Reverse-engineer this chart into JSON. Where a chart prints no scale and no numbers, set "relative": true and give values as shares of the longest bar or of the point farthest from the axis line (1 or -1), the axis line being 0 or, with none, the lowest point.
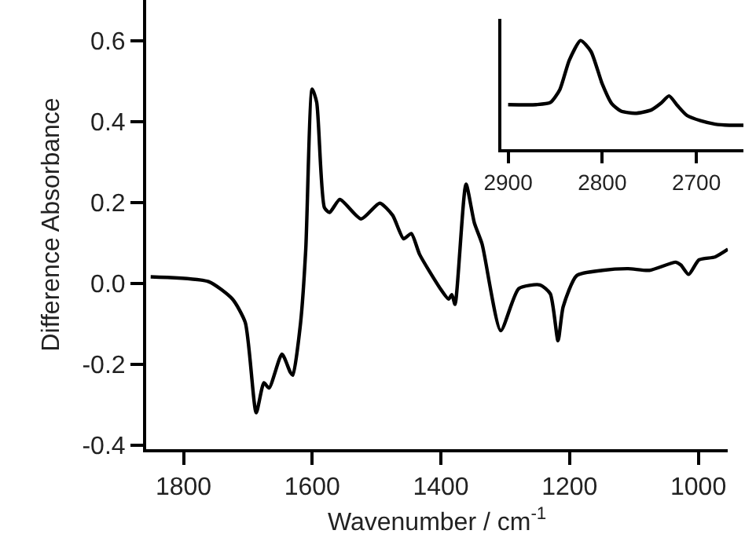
{
  "chart_data": [
    {
      "type": "line",
      "xlabel": "Wavenumber / cm$^{-1}$",
      "ylabel": "Difference Absorbance",
      "xlim": [
        1858,
        954
      ],
      "ylim": [
        -0.41,
        0.7
      ],
      "xticks": [
        1800,
        1600,
        1400,
        1200,
        1000
      ],
      "yticks": [
        {
          "value": 0.6,
          "label": "0.6"
        },
        {
          "value": 0.4,
          "label": "0.4"
        },
        {
          "value": 0.2,
          "label": "0.2"
        },
        {
          "value": 0.0,
          "label": "0.0"
        },
        {
          "value": -0.2,
          "label": "-0.2"
        },
        {
          "value": -0.4,
          "label": "-0.4"
        }
      ],
      "marker": "none",
      "line_style": "solid",
      "series": [
        {
          "color": "#000000",
          "x": [
            1851,
            1761,
            1724,
            1704,
            1687,
            1675,
            1667,
            1647,
            1634,
            1630,
            1618,
            1610,
            1600,
            1593,
            1581,
            1573,
            1557,
            1524,
            1495,
            1475,
            1458,
            1446,
            1433,
            1401,
            1388,
            1383,
            1378,
            1361,
            1348,
            1336,
            1307,
            1279,
            1246,
            1230,
            1218,
            1210,
            1189,
            1149,
            1109,
            1076,
            1035,
            1027,
            1015,
            999,
            974,
            954
          ],
          "values": [
            0.016,
            0.004,
            -0.039,
            -0.097,
            -0.32,
            -0.246,
            -0.259,
            -0.175,
            -0.22,
            -0.227,
            -0.097,
            0.084,
            0.48,
            0.447,
            0.187,
            0.175,
            0.207,
            0.159,
            0.198,
            0.168,
            0.11,
            0.123,
            0.071,
            -0.013,
            -0.039,
            -0.028,
            -0.052,
            0.245,
            0.149,
            0.097,
            -0.117,
            -0.013,
            -0.004,
            -0.026,
            -0.142,
            -0.058,
            0.019,
            0.032,
            0.036,
            0.032,
            0.052,
            0.045,
            0.022,
            0.058,
            0.065,
            0.084
          ]
        }
      ]
    },
    {
      "type": "line",
      "relative": true,
      "xlim": [
        2907,
        2650
      ],
      "xticks": [
        2900,
        2800,
        2700
      ],
      "tick_labels": "x",
      "marker": "none",
      "line_style": "solid",
      "series": [
        {
          "color": "#000000",
          "x": [
            2900,
            2870,
            2855,
            2845,
            2835,
            2823,
            2812,
            2800,
            2790,
            2780,
            2765,
            2748,
            2738,
            2729,
            2720,
            2710,
            2695,
            2680,
            2665,
            2650
          ],
          "values": [
            0.41,
            0.41,
            0.43,
            0.55,
            0.82,
            1.0,
            0.9,
            0.6,
            0.42,
            0.35,
            0.33,
            0.36,
            0.42,
            0.49,
            0.4,
            0.31,
            0.26,
            0.23,
            0.22,
            0.22
          ]
        }
      ]
    }
  ]
}
